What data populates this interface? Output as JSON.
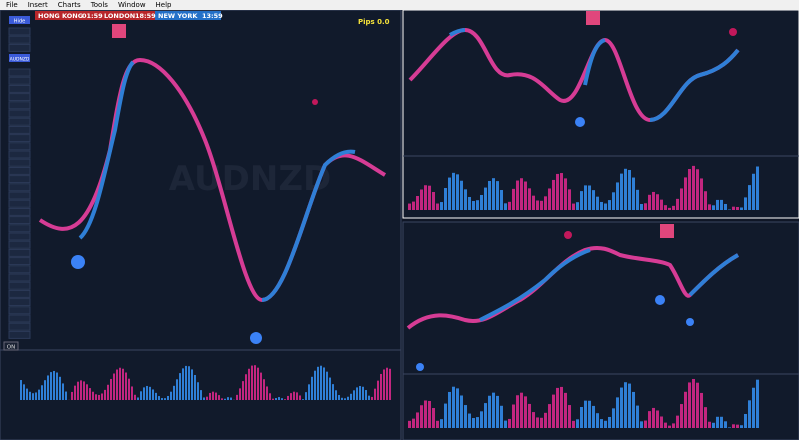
{
  "menu": [
    "File",
    "Insert",
    "Charts",
    "Tools",
    "Window",
    "Help"
  ],
  "sessions": [
    {
      "city": "HONG KONG",
      "time": "01:59"
    },
    {
      "city": "LONDON",
      "time": "18:59"
    },
    {
      "city": "NEW YORK",
      "time": "13:59"
    }
  ],
  "pips": "Pips 0.0",
  "sidebar": {
    "hide": "Hide",
    "active": "AUDNZD"
  },
  "main_chart": {
    "watermark": "AUDNZD",
    "indicator_toggle": "ON"
  }
}
